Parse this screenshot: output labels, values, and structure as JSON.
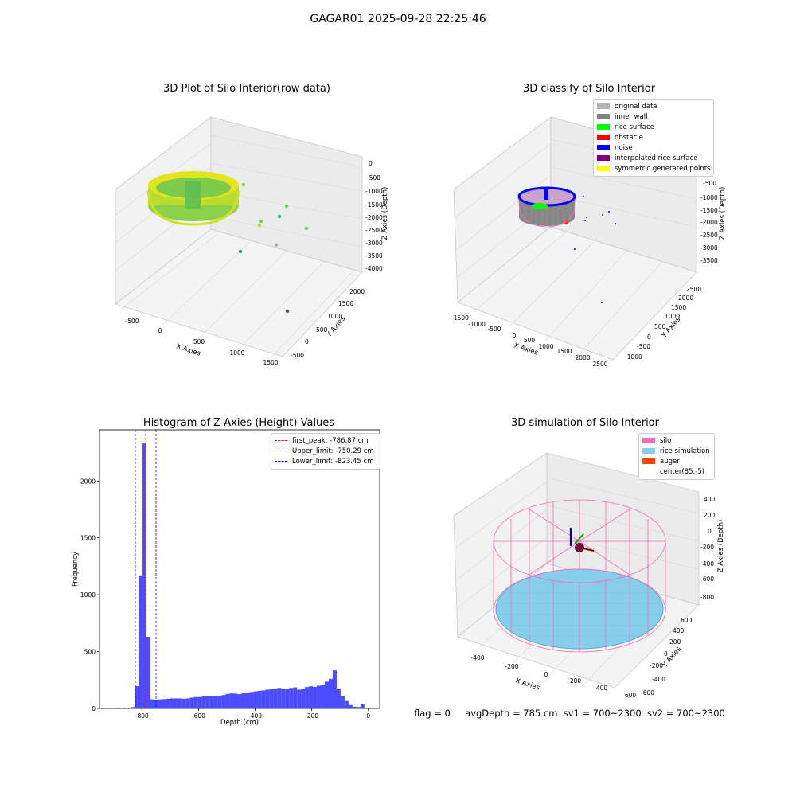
{
  "page": {
    "suptitle": "GAGAR01 2025-09-28 22:25:46"
  },
  "status": {
    "flag": "flag = 0",
    "avg_depth": "avgDepth = 785 cm",
    "sv1": "sv1 = 700~2300",
    "sv2": "sv2 = 700~2300"
  },
  "chart_data": [
    {
      "type": "scatter",
      "projection": "3d",
      "title": "3D Plot of Silo Interior(row data)",
      "xlabel": "X Axies",
      "ylabel": "Y Axies",
      "zlabel": "Z Axies (Depth)",
      "x_ticks": [
        "-500",
        "0",
        "500",
        "1000",
        "1500"
      ],
      "y_ticks": [
        "-500",
        "0",
        "500",
        "1000",
        "1500",
        "2000"
      ],
      "z_ticks": [
        "0",
        "-500",
        "-1000",
        "-1500",
        "-2000",
        "-2500",
        "-3000",
        "-3500",
        "-4000"
      ],
      "colormap": "viridis",
      "grid": true,
      "outlier_points": [
        {
          "x": 1000,
          "y": 300,
          "z": -1000
        },
        {
          "x": 1300,
          "y": 400,
          "z": -1600
        },
        {
          "x": 1200,
          "y": 500,
          "z": -2000
        },
        {
          "x": 1000,
          "y": 700,
          "z": -2400
        },
        {
          "x": 1500,
          "y": 800,
          "z": -2600
        },
        {
          "x": 1300,
          "y": 1000,
          "z": -3000
        },
        {
          "x": 900,
          "y": 1200,
          "z": -3500
        },
        {
          "x": 1600,
          "y": 1800,
          "z": -4000
        }
      ]
    },
    {
      "type": "scatter",
      "projection": "3d",
      "title": "3D classify of Silo Interior",
      "xlabel": "X Axies",
      "ylabel": "Y Axies",
      "zlabel": "Z Axies (Depth)",
      "x_ticks": [
        "-1500",
        "-1000",
        "-500",
        "0",
        "500",
        "1000",
        "1500",
        "2000",
        "2500"
      ],
      "y_ticks": [
        "-1000",
        "-500",
        "0",
        "500",
        "1000",
        "1500",
        "2000",
        "2500"
      ],
      "z_ticks": [
        "0",
        "-500",
        "-1000",
        "-1500",
        "-2000",
        "-2500",
        "-3000",
        "-3500"
      ],
      "grid": true,
      "legend_position": "top-right",
      "legend": [
        {
          "label": "original data",
          "color": "#b3b3b3"
        },
        {
          "label": "inner wall",
          "color": "#808080"
        },
        {
          "label": "rice surface",
          "color": "#00ff00"
        },
        {
          "label": "obstacle",
          "color": "#ff0000"
        },
        {
          "label": "noise",
          "color": "#0000ff"
        },
        {
          "label": "interpolated rice surface",
          "color": "#800080"
        },
        {
          "label": "symmetric generated points",
          "color": "#ffff00"
        }
      ]
    },
    {
      "type": "bar",
      "title": "Histogram of Z-Axies (Height) Values",
      "xlabel": "Depth (cm)",
      "ylabel": "Frequency",
      "xlim": [
        -950,
        40
      ],
      "ylim": [
        0,
        2450
      ],
      "x_ticks": [
        -800,
        -600,
        -400,
        -200,
        0
      ],
      "y_ticks": [
        0,
        500,
        1000,
        1500,
        2000
      ],
      "bar_color": "#0000ff",
      "bin_width": 14,
      "bins_start": [
        -910,
        -882,
        -868,
        -840,
        -826,
        -812,
        -798,
        -784,
        -770,
        -756,
        -742,
        -728,
        -714,
        -700,
        -686,
        -672,
        -658,
        -644,
        -630,
        -616,
        -602,
        -588,
        -574,
        -560,
        -546,
        -532,
        -518,
        -504,
        -490,
        -476,
        -462,
        -448,
        -434,
        -420,
        -406,
        -392,
        -378,
        -364,
        -350,
        -336,
        -322,
        -308,
        -294,
        -280,
        -266,
        -252,
        -238,
        -224,
        -210,
        -196,
        -182,
        -168,
        -154,
        -140,
        -126,
        -112,
        -98,
        -84,
        -70,
        -56,
        -42,
        -28,
        -14
      ],
      "counts": [
        5,
        3,
        5,
        12,
        195,
        1170,
        2330,
        630,
        80,
        75,
        80,
        82,
        85,
        88,
        88,
        88,
        85,
        88,
        95,
        100,
        100,
        105,
        105,
        108,
        108,
        110,
        118,
        128,
        132,
        130,
        125,
        135,
        140,
        145,
        150,
        155,
        158,
        165,
        170,
        175,
        180,
        175,
        172,
        180,
        185,
        165,
        172,
        188,
        195,
        190,
        200,
        210,
        235,
        260,
        335,
        175,
        110,
        65,
        30,
        15,
        12,
        35,
        5
      ],
      "legend_position": "top-right",
      "lines": [
        {
          "label": "first_peak: -786.87 cm",
          "x": -786.87,
          "color": "#ff0000",
          "style": "dashed"
        },
        {
          "label": "Upper_limit: -750.29 cm",
          "x": -750.29,
          "color": "#0000ff",
          "style": "dashed"
        },
        {
          "label": "Lower_limit: -823.45 cm",
          "x": -823.45,
          "color": "#0000ff",
          "style": "dashed"
        }
      ]
    },
    {
      "type": "surface",
      "projection": "3d",
      "title": "3D simulation of Silo Interior",
      "xlabel": "X Axies",
      "ylabel": "Y Axies",
      "zlabel": "Z Axies (Depth)",
      "x_ticks": [
        "-400",
        "-200",
        "0",
        "200",
        "400",
        "600"
      ],
      "y_ticks": [
        "-600",
        "-400",
        "-200",
        "0",
        "200",
        "400",
        "600"
      ],
      "z_ticks": [
        "400",
        "200",
        "0",
        "-200",
        "-400",
        "-600",
        "-800"
      ],
      "grid": true,
      "legend_position": "top-right",
      "legend": [
        {
          "label": "silo",
          "color": "#ff69b4"
        },
        {
          "label": "rice simulation",
          "color": "#87ceeb"
        },
        {
          "label": "auger",
          "color": "#ff4500"
        },
        {
          "label": "center(85,-5)",
          "color": ""
        }
      ]
    }
  ]
}
